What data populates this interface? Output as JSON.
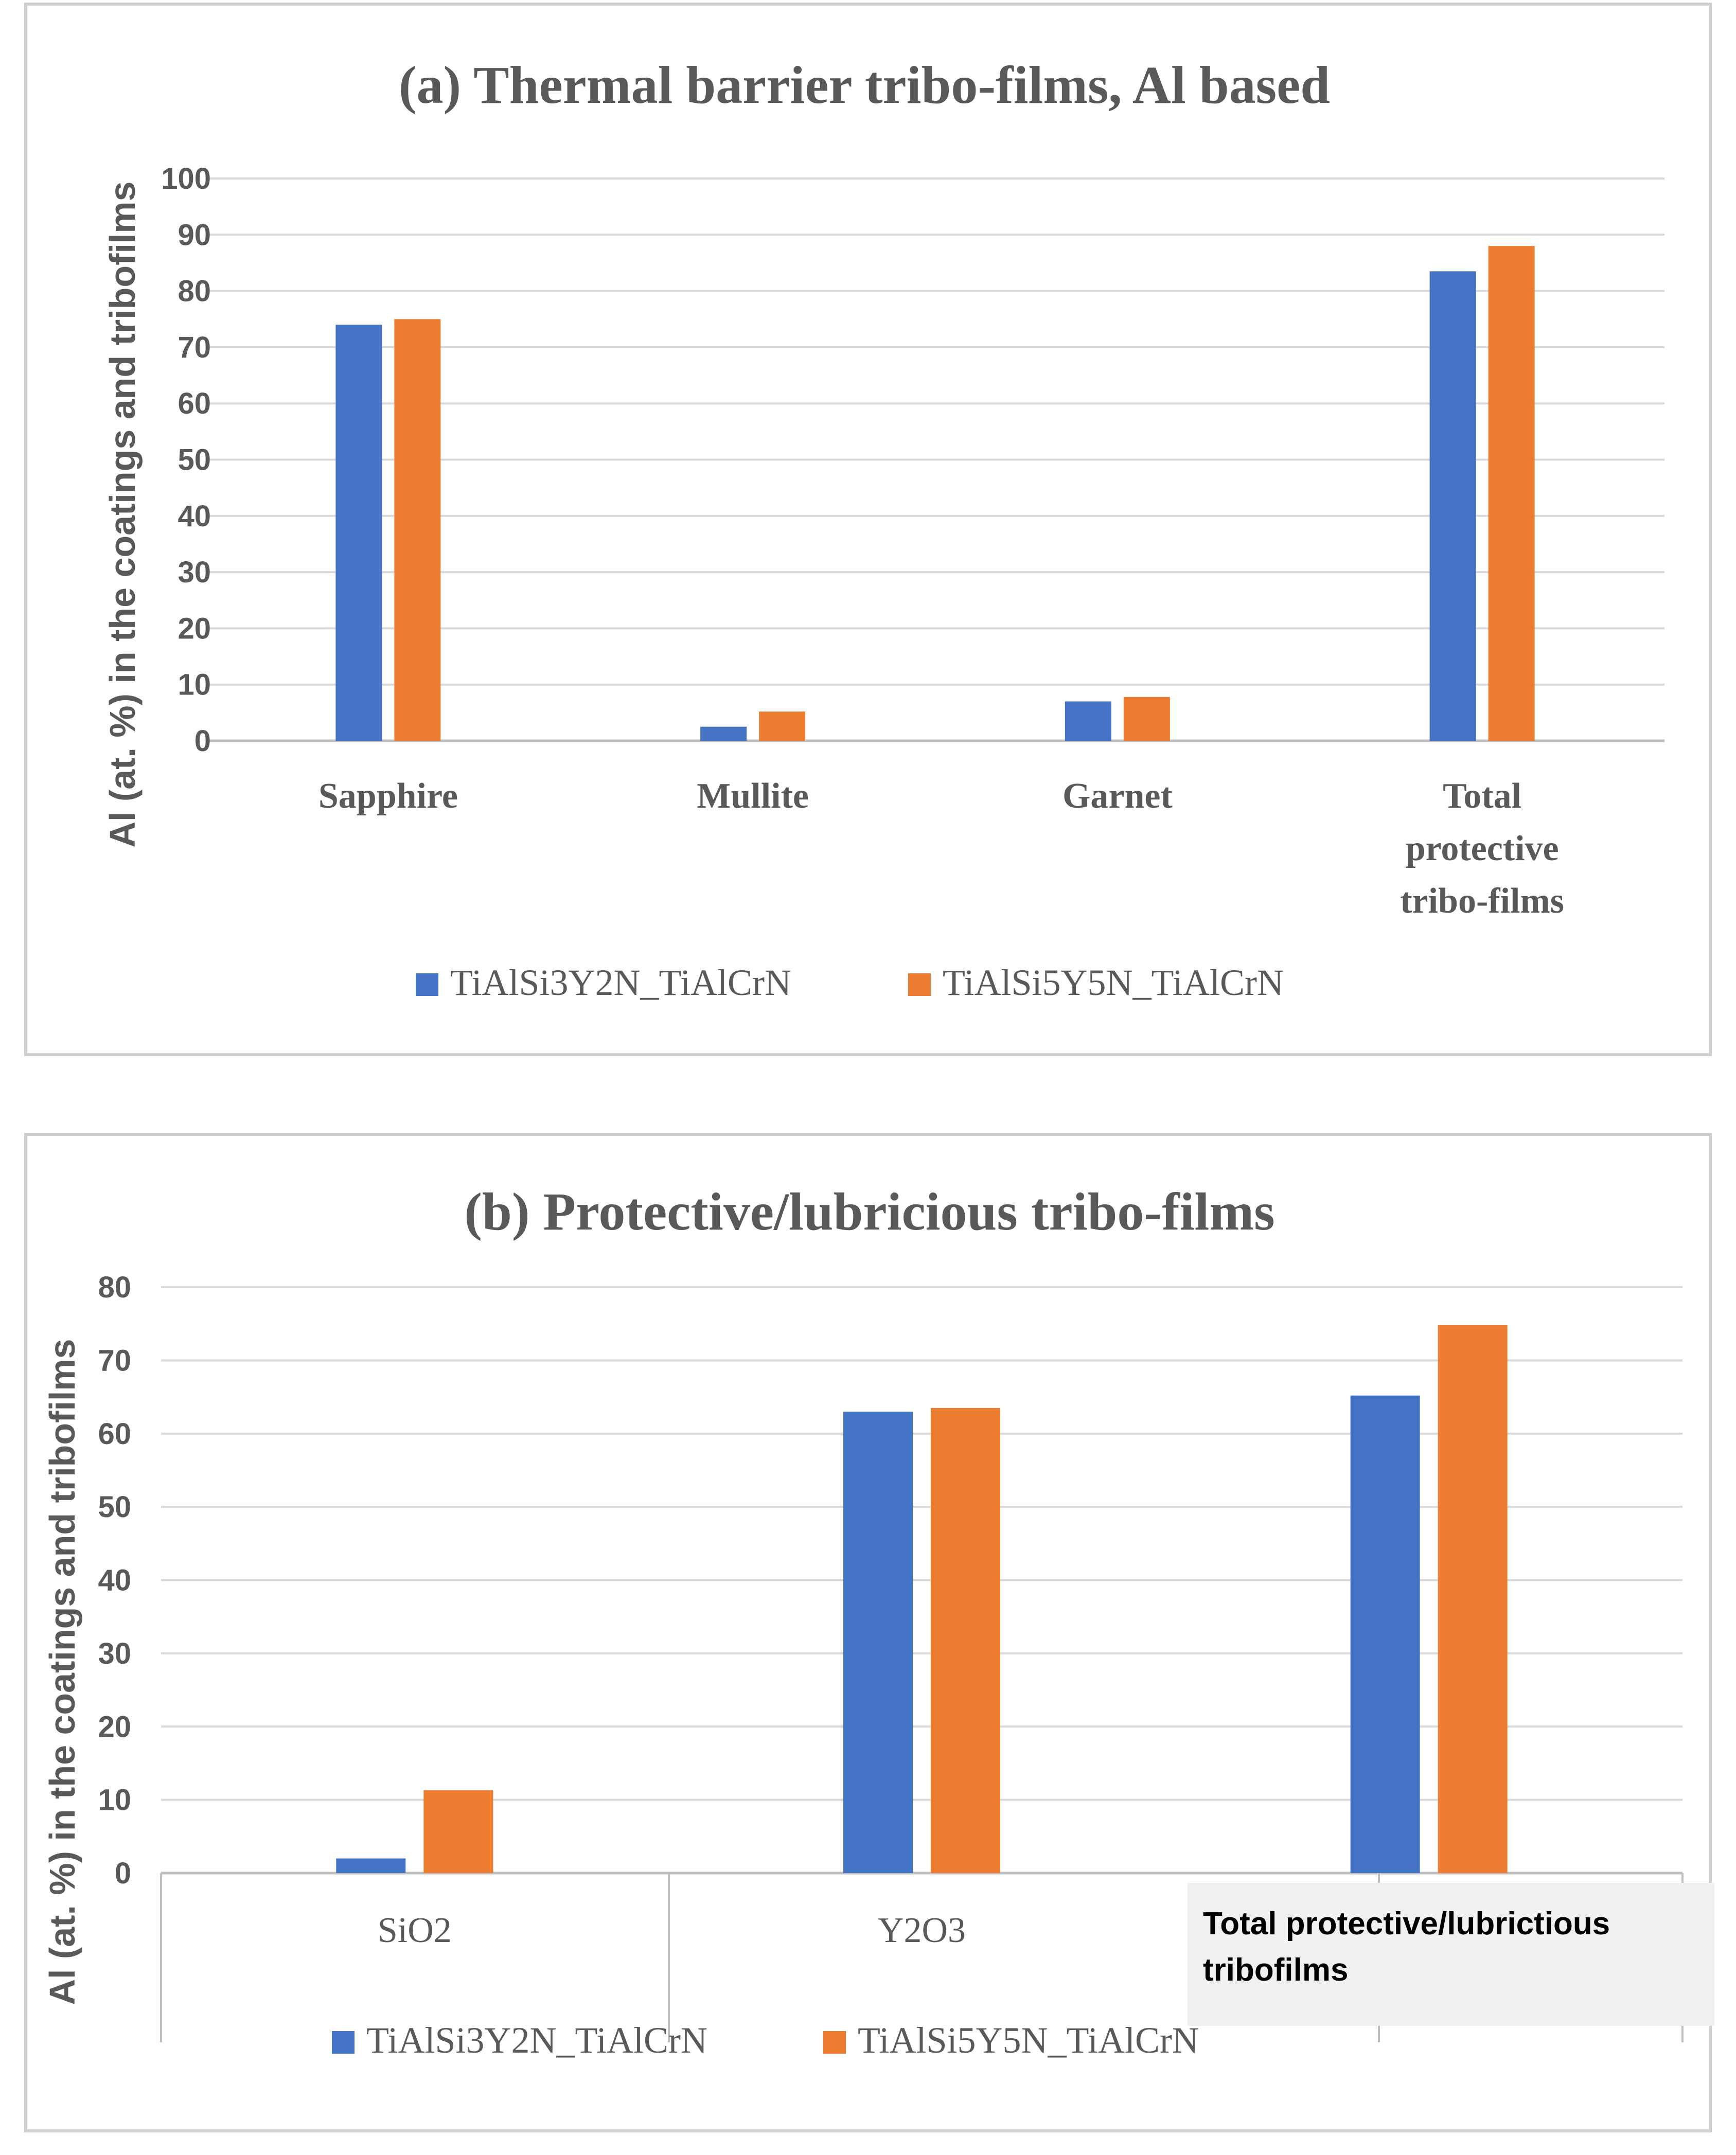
{
  "colors": {
    "series1": "#4472C4",
    "series2": "#ED7D31",
    "grid": "#D9D9D9",
    "frame": "#D0D0D0",
    "text": "#595959",
    "overlay_bg": "#F0F0F0"
  },
  "legend": {
    "series1_label": "TiAlSi3Y2N_TiAlCrN",
    "series2_label": "TiAlSi5Y5N_TiAlCrN"
  },
  "overlay_label": {
    "line1": "Total protective/lubrictious",
    "line2": "tribofilms"
  },
  "chart_data": [
    {
      "type": "bar",
      "title": "(a) Thermal barrier tribo-films, Al based",
      "ylabel": "Al (at. %) in the coatings and tribofilms",
      "xlabel": "",
      "ylim": [
        0,
        100
      ],
      "yticks": [
        0,
        10,
        20,
        30,
        40,
        50,
        60,
        70,
        80,
        90,
        100
      ],
      "categories": [
        "Sapphire",
        "Mullite",
        "Garnet",
        "Total protective tribo-films"
      ],
      "category_lines": [
        [
          "Sapphire"
        ],
        [
          "Mullite"
        ],
        [
          "Garnet"
        ],
        [
          "Total",
          "protective",
          "tribo-films"
        ]
      ],
      "series": [
        {
          "name": "TiAlSi3Y2N_TiAlCrN",
          "values": [
            74,
            2.5,
            7,
            83.5
          ]
        },
        {
          "name": "TiAlSi5Y5N_TiAlCrN",
          "values": [
            75,
            5.2,
            7.8,
            88
          ]
        }
      ],
      "legend_position": "bottom"
    },
    {
      "type": "bar",
      "title": "(b) Protective/lubricious tribo-films",
      "ylabel": "Al (at. %) in the coatings and tribofilms",
      "xlabel": "",
      "ylim": [
        0,
        80
      ],
      "yticks": [
        0,
        10,
        20,
        30,
        40,
        50,
        60,
        70,
        80
      ],
      "categories": [
        "SiO2",
        "Y2O3",
        "Total protective/lubrictious tribofilms"
      ],
      "category_lines": [
        [
          "SiO2"
        ],
        [
          "Y2O3"
        ],
        [
          ""
        ]
      ],
      "series": [
        {
          "name": "TiAlSi3Y2N_TiAlCrN",
          "values": [
            2,
            63,
            65.2
          ]
        },
        {
          "name": "TiAlSi5Y5N_TiAlCrN",
          "values": [
            11.3,
            63.5,
            74.8
          ]
        }
      ],
      "legend_position": "bottom"
    }
  ]
}
